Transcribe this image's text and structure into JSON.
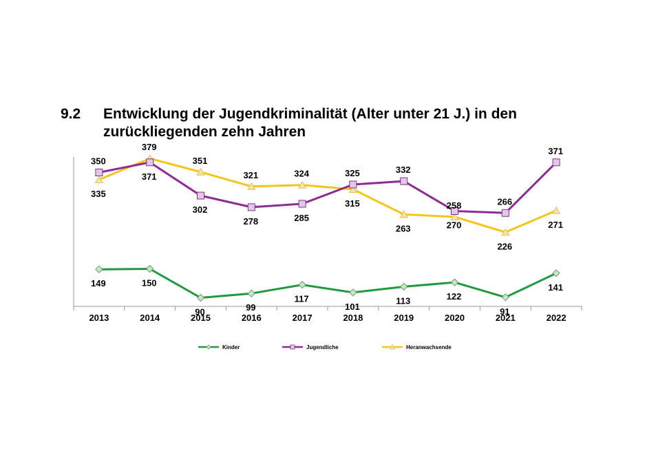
{
  "heading": {
    "number": "9.2",
    "text": "Entwicklung der Jugendkriminalität (Alter unter 21 J.) in den zurückliegenden zehn Jahren"
  },
  "chart_data": {
    "type": "line",
    "title": "Entwicklung der Jugendkriminalität (Alter unter 21 J.) in den zurückliegenden zehn Jahren",
    "categories": [
      "2013",
      "2014",
      "2015",
      "2016",
      "2017",
      "2018",
      "2019",
      "2020",
      "2021",
      "2022"
    ],
    "series": [
      {
        "name": "Kinder",
        "values": [
          149,
          150,
          90,
          99,
          117,
          101,
          113,
          122,
          91,
          141
        ],
        "color": "#1f9a3c",
        "marker": "diamond",
        "marker_fill": "#c8e6c9",
        "label_position": "below"
      },
      {
        "name": "Jugendliche",
        "values": [
          350,
          371,
          302,
          278,
          285,
          325,
          332,
          270,
          266,
          371
        ],
        "color": "#8e2b92",
        "marker": "square",
        "marker_fill": "#e0c8e6",
        "label_position": [
          "above",
          "below",
          "below",
          "below",
          "below",
          "above",
          "above",
          "below",
          "above",
          "above"
        ]
      },
      {
        "name": "Heranwachsende",
        "values": [
          335,
          379,
          351,
          321,
          324,
          315,
          263,
          258,
          226,
          271
        ],
        "color": "#f5c518",
        "marker": "triangle",
        "marker_fill": "#f3e6a5",
        "label_position": [
          "below",
          "above",
          "above",
          "above",
          "above",
          "below",
          "below",
          "above",
          "below",
          "below"
        ]
      }
    ],
    "ylim": [
      0,
      400
    ],
    "grid": false,
    "legend": "bottom",
    "xlabel": "",
    "ylabel": ""
  }
}
